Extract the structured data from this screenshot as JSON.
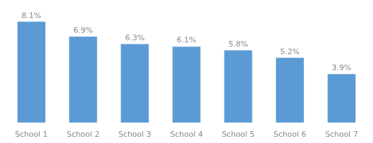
{
  "chart_data": {
    "type": "bar",
    "categories": [
      "School 1",
      "School 2",
      "School 3",
      "School 4",
      "School 5",
      "School 6",
      "School 7"
    ],
    "values": [
      8.1,
      6.9,
      6.3,
      6.1,
      5.8,
      5.2,
      3.9
    ],
    "value_labels": [
      "8.1%",
      "6.9%",
      "6.3%",
      "6.1%",
      "5.8%",
      "5.2%",
      "3.9%"
    ],
    "data_labels": true,
    "color": "#5b9bd5",
    "ylim": [
      0,
      9.5
    ],
    "grid": false,
    "tick_labels": "x"
  }
}
